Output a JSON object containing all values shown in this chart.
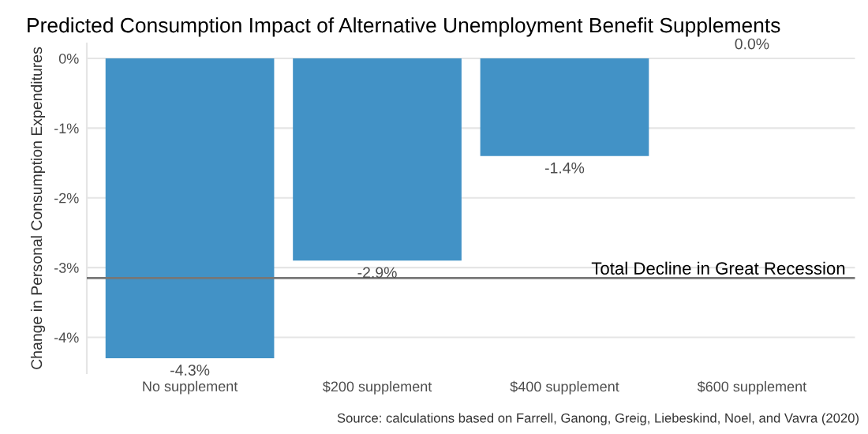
{
  "chart_data": {
    "type": "bar",
    "title": "Predicted Consumption Impact of Alternative Unemployment Benefit Supplements",
    "ylabel": "Change in Personal Consumption Expenditures",
    "categories": [
      "No supplement",
      "$200 supplement",
      "$400 supplement",
      "$600 supplement"
    ],
    "values": [
      -4.3,
      -2.9,
      -1.4,
      0.0
    ],
    "value_labels": [
      "-4.3%",
      "-2.9%",
      "-1.4%",
      "0.0%"
    ],
    "color": "#4292c6",
    "ylim": [
      -4.515,
      0.215
    ],
    "yticks": [
      {
        "value": 0,
        "label": "0%"
      },
      {
        "value": -1,
        "label": "-1%"
      },
      {
        "value": -2,
        "label": "-2%"
      },
      {
        "value": -3,
        "label": "-3%"
      },
      {
        "value": -4,
        "label": "-4%"
      }
    ],
    "grid": "y",
    "ref_lines": [
      {
        "axis": "y",
        "value": -3.15,
        "label": "Total Decline in Great Recession",
        "color": "#777777"
      }
    ],
    "annotations": [
      "Source: calculations based on Farrell, Ganong, Greig, Liebeskind, Noel, and Vavra (2020)"
    ]
  }
}
